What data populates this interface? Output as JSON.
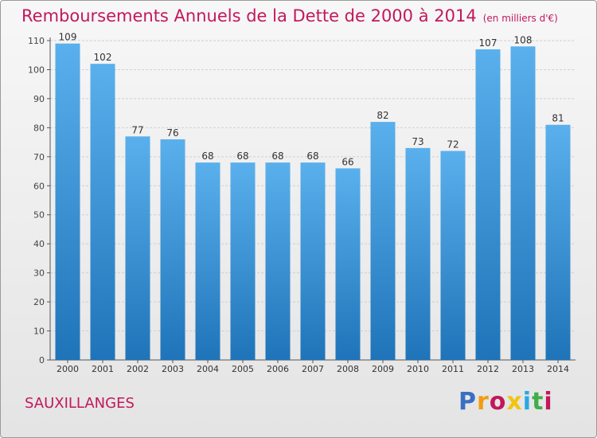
{
  "header": {
    "title": "Remboursements Annuels de la Dette de 2000 à 2014",
    "unit": "(en milliers d'€)"
  },
  "commune": "SAUXILLANGES",
  "logo": {
    "text": "Proxiti",
    "letter_colors": [
      "#3a6fc2",
      "#f39c12",
      "#c2185b",
      "#f1c40f",
      "#27a9e1",
      "#3fae49",
      "#c2185b"
    ]
  },
  "colors": {
    "bar_top": "#5ab0ec",
    "bar_bottom": "#1f74b9",
    "title": "#c2185b",
    "grid": "#cfcfcf"
  },
  "chart_data": {
    "type": "bar",
    "categories": [
      "2000",
      "2001",
      "2002",
      "2003",
      "2004",
      "2005",
      "2006",
      "2007",
      "2008",
      "2009",
      "2010",
      "2011",
      "2012",
      "2013",
      "2014"
    ],
    "values": [
      109,
      102,
      77,
      76,
      68,
      68,
      68,
      68,
      66,
      82,
      73,
      72,
      107,
      108,
      81
    ],
    "ylim": [
      0,
      110
    ],
    "yticks": [
      0,
      10,
      20,
      30,
      40,
      50,
      60,
      70,
      80,
      90,
      100,
      110
    ],
    "grid": true
  }
}
